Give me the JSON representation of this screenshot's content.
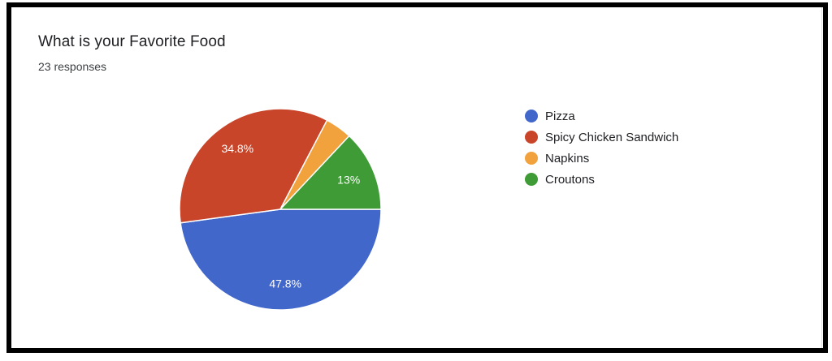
{
  "chart_data": {
    "type": "pie",
    "title": "What is your Favorite Food",
    "subtitle": "23 responses",
    "total_responses": 23,
    "legend_position": "right",
    "start_angle": "3-oclock",
    "direction": "clockwise",
    "slices": [
      {
        "label": "Pizza",
        "pct": 47.8,
        "display_label": "47.8%",
        "color": "#4267CB"
      },
      {
        "label": "Spicy Chicken Sandwich",
        "pct": 34.8,
        "display_label": "34.8%",
        "color": "#C9452A"
      },
      {
        "label": "Napkins",
        "pct": 4.3,
        "display_label": "",
        "color": "#F1A23C"
      },
      {
        "label": "Croutons",
        "pct": 13.0,
        "display_label": "13%",
        "color": "#3E9B35"
      }
    ]
  },
  "colors": {
    "annotation_border": "#000000",
    "card_border": "#dadce0",
    "card_background": "#ffffff",
    "title_text": "#202124",
    "subtitle_text": "#3c4043",
    "legend_text": "#202124",
    "slice_label_text": "#ffffff",
    "slice_separator": "#ffffff"
  }
}
